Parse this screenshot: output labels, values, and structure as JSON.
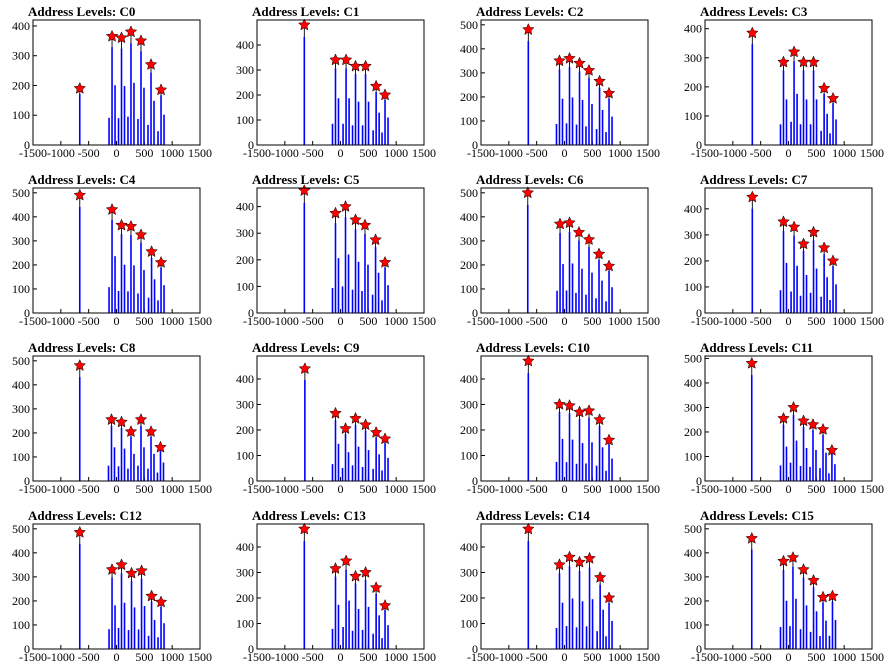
{
  "figure": {
    "axes": {
      "xlim": [
        -1500,
        1500
      ],
      "x_ticks": [
        -1500,
        -1000,
        -500,
        0,
        500,
        1000,
        1500
      ],
      "x_tick_labels": [
        "-1500",
        "-1000",
        "-500",
        "0",
        "500",
        "1000",
        "1500"
      ],
      "grid": false
    },
    "colors": {
      "histogram": "#0000ff",
      "peak_marker": "#ff0000",
      "text": "#000000"
    },
    "marker_icon": "star-icon"
  },
  "chart_data": [
    {
      "type": "bar",
      "title": "Address Levels: C0",
      "ylim": [
        0,
        420
      ],
      "y_ticks": [
        0,
        100,
        200,
        300,
        400
      ],
      "y_tick_labels": [
        "0",
        "100",
        "200",
        "300",
        "400"
      ],
      "peaks_x": [
        -660,
        -80,
        90,
        260,
        440,
        620,
        800
      ],
      "peaks_y": [
        190,
        365,
        360,
        380,
        350,
        270,
        185
      ]
    },
    {
      "type": "bar",
      "title": "Address Levels: C1",
      "ylim": [
        0,
        500
      ],
      "y_ticks": [
        0,
        100,
        200,
        300,
        400
      ],
      "y_tick_labels": [
        "0",
        "100",
        "200",
        "300",
        "400"
      ],
      "peaks_x": [
        -650,
        -90,
        100,
        270,
        450,
        640,
        800
      ],
      "peaks_y": [
        480,
        340,
        340,
        315,
        315,
        235,
        200
      ]
    },
    {
      "type": "bar",
      "title": "Address Levels: C2",
      "ylim": [
        0,
        520
      ],
      "y_ticks": [
        0,
        100,
        200,
        300,
        400,
        500
      ],
      "y_tick_labels": [
        "0",
        "100",
        "200",
        "300",
        "400",
        "500"
      ],
      "peaks_x": [
        -650,
        -90,
        90,
        270,
        440,
        630,
        800
      ],
      "peaks_y": [
        480,
        350,
        360,
        340,
        310,
        265,
        215
      ]
    },
    {
      "type": "bar",
      "title": "Address Levels: C3",
      "ylim": [
        0,
        430
      ],
      "y_ticks": [
        0,
        100,
        200,
        300,
        400
      ],
      "y_tick_labels": [
        "0",
        "100",
        "200",
        "300",
        "400"
      ],
      "peaks_x": [
        -650,
        -90,
        100,
        270,
        450,
        640,
        800
      ],
      "peaks_y": [
        385,
        285,
        320,
        285,
        285,
        195,
        160
      ]
    },
    {
      "type": "bar",
      "title": "Address Levels: C4",
      "ylim": [
        0,
        520
      ],
      "y_ticks": [
        0,
        100,
        200,
        300,
        400,
        500
      ],
      "y_tick_labels": [
        "0",
        "100",
        "200",
        "300",
        "400",
        "500"
      ],
      "peaks_x": [
        -660,
        -80,
        90,
        260,
        440,
        630,
        800
      ],
      "peaks_y": [
        490,
        430,
        365,
        360,
        325,
        255,
        210
      ]
    },
    {
      "type": "bar",
      "title": "Address Levels: C5",
      "ylim": [
        0,
        470
      ],
      "y_ticks": [
        0,
        100,
        200,
        300,
        400
      ],
      "y_tick_labels": [
        "0",
        "100",
        "200",
        "300",
        "400"
      ],
      "peaks_x": [
        -650,
        -90,
        90,
        270,
        440,
        630,
        800
      ],
      "peaks_y": [
        460,
        375,
        400,
        350,
        330,
        275,
        190
      ]
    },
    {
      "type": "bar",
      "title": "Address Levels: C6",
      "ylim": [
        0,
        520
      ],
      "y_ticks": [
        0,
        100,
        200,
        300,
        400,
        500
      ],
      "y_tick_labels": [
        "0",
        "100",
        "200",
        "300",
        "400",
        "500"
      ],
      "peaks_x": [
        -660,
        -80,
        90,
        260,
        440,
        620,
        800
      ],
      "peaks_y": [
        500,
        370,
        375,
        335,
        305,
        245,
        195
      ]
    },
    {
      "type": "bar",
      "title": "Address Levels: C7",
      "ylim": [
        0,
        480
      ],
      "y_ticks": [
        0,
        100,
        200,
        300,
        400
      ],
      "y_tick_labels": [
        "0",
        "100",
        "200",
        "300",
        "400"
      ],
      "peaks_x": [
        -650,
        -90,
        100,
        270,
        450,
        640,
        800
      ],
      "peaks_y": [
        445,
        350,
        330,
        265,
        310,
        250,
        200
      ]
    },
    {
      "type": "bar",
      "title": "Address Levels: C8",
      "ylim": [
        0,
        520
      ],
      "y_ticks": [
        0,
        100,
        200,
        300,
        400,
        500
      ],
      "y_tick_labels": [
        "0",
        "100",
        "200",
        "300",
        "400",
        "500"
      ],
      "peaks_x": [
        -660,
        -90,
        90,
        260,
        440,
        620,
        790
      ],
      "peaks_y": [
        480,
        255,
        245,
        205,
        255,
        205,
        140
      ]
    },
    {
      "type": "bar",
      "title": "Address Levels: C9",
      "ylim": [
        0,
        490
      ],
      "y_ticks": [
        0,
        100,
        200,
        300,
        400
      ],
      "y_tick_labels": [
        "0",
        "100",
        "200",
        "300",
        "400"
      ],
      "peaks_x": [
        -640,
        -90,
        90,
        270,
        450,
        640,
        800
      ],
      "peaks_y": [
        440,
        265,
        205,
        245,
        220,
        190,
        165
      ]
    },
    {
      "type": "bar",
      "title": "Address Levels: C10",
      "ylim": [
        0,
        490
      ],
      "y_ticks": [
        0,
        100,
        200,
        300,
        400
      ],
      "y_tick_labels": [
        "0",
        "100",
        "200",
        "300",
        "400"
      ],
      "peaks_x": [
        -650,
        -90,
        90,
        270,
        440,
        630,
        800
      ],
      "peaks_y": [
        470,
        300,
        295,
        270,
        275,
        240,
        160
      ]
    },
    {
      "type": "bar",
      "title": "Address Levels: C11",
      "ylim": [
        0,
        510
      ],
      "y_ticks": [
        0,
        100,
        200,
        300,
        400,
        500
      ],
      "y_tick_labels": [
        "0",
        "100",
        "200",
        "300",
        "400",
        "500"
      ],
      "peaks_x": [
        -660,
        -90,
        90,
        270,
        440,
        620,
        780
      ],
      "peaks_y": [
        480,
        255,
        300,
        245,
        230,
        210,
        125
      ]
    },
    {
      "type": "bar",
      "title": "Address Levels: C12",
      "ylim": [
        0,
        520
      ],
      "y_ticks": [
        0,
        100,
        200,
        300,
        400,
        500
      ],
      "y_tick_labels": [
        "0",
        "100",
        "200",
        "300",
        "400",
        "500"
      ],
      "peaks_x": [
        -660,
        -80,
        90,
        270,
        450,
        630,
        800
      ],
      "peaks_y": [
        485,
        330,
        350,
        315,
        325,
        220,
        195
      ]
    },
    {
      "type": "bar",
      "title": "Address Levels: C13",
      "ylim": [
        0,
        490
      ],
      "y_ticks": [
        0,
        100,
        200,
        300,
        400
      ],
      "y_tick_labels": [
        "0",
        "100",
        "200",
        "300",
        "400"
      ],
      "peaks_x": [
        -650,
        -90,
        100,
        270,
        450,
        640,
        800
      ],
      "peaks_y": [
        470,
        315,
        345,
        285,
        300,
        240,
        170
      ]
    },
    {
      "type": "bar",
      "title": "Address Levels: C14",
      "ylim": [
        0,
        490
      ],
      "y_ticks": [
        0,
        100,
        200,
        300,
        400
      ],
      "y_tick_labels": [
        "0",
        "100",
        "200",
        "300",
        "400"
      ],
      "peaks_x": [
        -650,
        -90,
        90,
        270,
        450,
        640,
        800
      ],
      "peaks_y": [
        470,
        330,
        360,
        340,
        355,
        280,
        200
      ]
    },
    {
      "type": "bar",
      "title": "Address Levels: C15",
      "ylim": [
        0,
        520
      ],
      "y_ticks": [
        0,
        100,
        200,
        300,
        400,
        500
      ],
      "y_tick_labels": [
        "0",
        "100",
        "200",
        "300",
        "400",
        "500"
      ],
      "peaks_x": [
        -660,
        -90,
        80,
        270,
        450,
        620,
        790
      ],
      "peaks_y": [
        460,
        365,
        380,
        330,
        285,
        215,
        220
      ]
    }
  ]
}
